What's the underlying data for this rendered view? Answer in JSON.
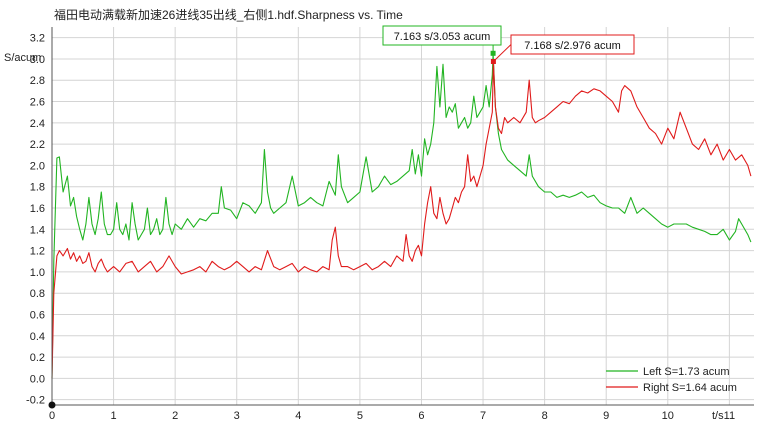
{
  "title": "福田电动满载新加速26进线35出线_右侧1.hdf.Sharpness vs. Time",
  "chart_data": {
    "type": "line",
    "title": "福田电动满载新加速26进线35出线_右侧1.hdf.Sharpness vs. Time",
    "xlabel": "t/s",
    "ylabel": "S/acum",
    "xlim": [
      0,
      11.4
    ],
    "ylim": [
      -0.25,
      3.3
    ],
    "x_ticks": [
      0,
      1,
      2,
      3,
      4,
      5,
      6,
      7,
      8,
      9,
      10,
      11
    ],
    "y_ticks": [
      -0.2,
      0.0,
      0.2,
      0.4,
      0.6,
      0.8,
      1.0,
      1.2,
      1.4,
      1.6,
      1.8,
      2.0,
      2.2,
      2.4,
      2.6,
      2.8,
      3.0,
      3.2
    ],
    "y_tick_labels": [
      "-0.2",
      "0.0",
      "0.2",
      "0.4",
      "0.6",
      "0.8",
      "1.0",
      "1.2",
      "1.4",
      "1.6",
      "1.8",
      "2.0",
      "2.2",
      "2.4",
      "2.6",
      "2.8",
      "3.0",
      "3.2"
    ],
    "grid": true,
    "legend_position": "bottom-right",
    "series": [
      {
        "name": "Left S=1.73 acum",
        "color": "#22b422",
        "x": [
          0,
          0.03,
          0.08,
          0.12,
          0.18,
          0.25,
          0.3,
          0.35,
          0.4,
          0.45,
          0.5,
          0.55,
          0.6,
          0.65,
          0.7,
          0.75,
          0.8,
          0.85,
          0.9,
          0.95,
          1.0,
          1.05,
          1.1,
          1.15,
          1.2,
          1.25,
          1.3,
          1.35,
          1.4,
          1.45,
          1.5,
          1.55,
          1.6,
          1.65,
          1.7,
          1.75,
          1.8,
          1.85,
          1.9,
          1.95,
          2.0,
          2.1,
          2.2,
          2.3,
          2.4,
          2.5,
          2.6,
          2.7,
          2.75,
          2.8,
          2.9,
          3.0,
          3.1,
          3.2,
          3.3,
          3.4,
          3.45,
          3.5,
          3.55,
          3.6,
          3.7,
          3.8,
          3.9,
          4.0,
          4.1,
          4.2,
          4.3,
          4.4,
          4.5,
          4.6,
          4.65,
          4.7,
          4.8,
          4.9,
          5.0,
          5.1,
          5.2,
          5.3,
          5.4,
          5.5,
          5.6,
          5.7,
          5.8,
          5.85,
          5.9,
          5.95,
          6.0,
          6.05,
          6.1,
          6.15,
          6.2,
          6.25,
          6.3,
          6.35,
          6.4,
          6.45,
          6.5,
          6.55,
          6.6,
          6.65,
          6.7,
          6.75,
          6.8,
          6.85,
          6.9,
          6.95,
          7.0,
          7.05,
          7.1,
          7.15,
          7.163,
          7.2,
          7.25,
          7.3,
          7.4,
          7.5,
          7.6,
          7.7,
          7.75,
          7.8,
          7.9,
          8.0,
          8.1,
          8.2,
          8.3,
          8.4,
          8.5,
          8.6,
          8.7,
          8.8,
          8.9,
          9.0,
          9.1,
          9.2,
          9.3,
          9.4,
          9.5,
          9.6,
          9.7,
          9.8,
          9.9,
          10.0,
          10.1,
          10.2,
          10.3,
          10.4,
          10.5,
          10.6,
          10.7,
          10.8,
          10.9,
          11.0,
          11.1,
          11.15,
          11.2,
          11.3,
          11.35
        ],
        "values": [
          0.0,
          1.1,
          2.07,
          2.08,
          1.75,
          1.9,
          1.62,
          1.7,
          1.52,
          1.4,
          1.3,
          1.45,
          1.7,
          1.45,
          1.35,
          1.5,
          1.75,
          1.45,
          1.35,
          1.35,
          1.4,
          1.65,
          1.4,
          1.35,
          1.45,
          1.3,
          1.65,
          1.45,
          1.3,
          1.35,
          1.4,
          1.6,
          1.35,
          1.4,
          1.5,
          1.35,
          1.4,
          1.7,
          1.45,
          1.35,
          1.45,
          1.4,
          1.5,
          1.42,
          1.5,
          1.48,
          1.55,
          1.55,
          1.8,
          1.6,
          1.58,
          1.5,
          1.65,
          1.62,
          1.55,
          1.65,
          2.15,
          1.75,
          1.6,
          1.55,
          1.6,
          1.65,
          1.9,
          1.62,
          1.65,
          1.7,
          1.65,
          1.62,
          1.85,
          1.72,
          2.1,
          1.8,
          1.65,
          1.7,
          1.75,
          2.08,
          1.75,
          1.8,
          1.9,
          1.82,
          1.85,
          1.9,
          1.95,
          2.15,
          1.92,
          2.1,
          1.9,
          2.25,
          2.1,
          2.2,
          2.4,
          2.93,
          2.55,
          2.95,
          2.45,
          2.55,
          2.5,
          2.58,
          2.35,
          2.4,
          2.45,
          2.35,
          2.4,
          2.65,
          2.45,
          2.5,
          2.55,
          2.75,
          2.55,
          2.85,
          3.053,
          2.55,
          2.3,
          2.15,
          2.05,
          2.0,
          1.95,
          1.9,
          2.1,
          1.9,
          1.8,
          1.75,
          1.75,
          1.7,
          1.72,
          1.7,
          1.72,
          1.75,
          1.7,
          1.72,
          1.65,
          1.62,
          1.6,
          1.6,
          1.55,
          1.7,
          1.55,
          1.6,
          1.55,
          1.5,
          1.45,
          1.42,
          1.45,
          1.45,
          1.45,
          1.42,
          1.4,
          1.38,
          1.35,
          1.35,
          1.4,
          1.3,
          1.38,
          1.5,
          1.45,
          1.35,
          1.28
        ]
      },
      {
        "name": "Right S=1.64 acum",
        "color": "#e01b1b",
        "x": [
          0,
          0.03,
          0.08,
          0.12,
          0.18,
          0.25,
          0.3,
          0.35,
          0.4,
          0.45,
          0.5,
          0.55,
          0.6,
          0.65,
          0.7,
          0.75,
          0.8,
          0.85,
          0.9,
          1.0,
          1.1,
          1.2,
          1.3,
          1.4,
          1.5,
          1.6,
          1.7,
          1.8,
          1.9,
          2.0,
          2.1,
          2.2,
          2.3,
          2.4,
          2.5,
          2.6,
          2.7,
          2.8,
          2.9,
          3.0,
          3.1,
          3.2,
          3.3,
          3.4,
          3.5,
          3.6,
          3.7,
          3.8,
          3.9,
          4.0,
          4.1,
          4.2,
          4.3,
          4.4,
          4.5,
          4.55,
          4.6,
          4.65,
          4.7,
          4.8,
          4.9,
          5.0,
          5.1,
          5.2,
          5.3,
          5.4,
          5.5,
          5.6,
          5.7,
          5.75,
          5.8,
          5.85,
          5.9,
          5.95,
          6.0,
          6.05,
          6.1,
          6.15,
          6.2,
          6.25,
          6.3,
          6.35,
          6.4,
          6.45,
          6.5,
          6.55,
          6.6,
          6.65,
          6.7,
          6.75,
          6.8,
          6.85,
          6.9,
          6.95,
          7.0,
          7.05,
          7.1,
          7.15,
          7.168,
          7.2,
          7.25,
          7.3,
          7.35,
          7.4,
          7.5,
          7.6,
          7.7,
          7.75,
          7.8,
          7.85,
          7.9,
          8.0,
          8.1,
          8.2,
          8.3,
          8.4,
          8.5,
          8.6,
          8.7,
          8.8,
          8.9,
          9.0,
          9.1,
          9.2,
          9.25,
          9.3,
          9.4,
          9.5,
          9.6,
          9.7,
          9.8,
          9.9,
          10.0,
          10.1,
          10.2,
          10.3,
          10.4,
          10.5,
          10.6,
          10.7,
          10.8,
          10.9,
          11.0,
          11.1,
          11.2,
          11.3,
          11.35
        ],
        "values": [
          0.0,
          0.8,
          1.15,
          1.2,
          1.15,
          1.22,
          1.12,
          1.18,
          1.1,
          1.15,
          1.08,
          1.1,
          1.18,
          1.05,
          1.0,
          1.08,
          1.12,
          1.05,
          1.0,
          1.05,
          1.0,
          1.08,
          1.1,
          1.0,
          1.05,
          1.1,
          1.0,
          1.05,
          1.15,
          1.05,
          0.98,
          1.0,
          1.02,
          1.05,
          1.0,
          1.1,
          1.05,
          1.02,
          1.05,
          1.1,
          1.05,
          1.0,
          1.05,
          1.02,
          1.2,
          1.05,
          1.02,
          1.05,
          1.08,
          1.0,
          1.05,
          1.02,
          1.0,
          1.05,
          1.02,
          1.3,
          1.42,
          1.15,
          1.05,
          1.05,
          1.02,
          1.05,
          1.08,
          1.02,
          1.05,
          1.1,
          1.05,
          1.15,
          1.1,
          1.35,
          1.15,
          1.1,
          1.2,
          1.25,
          1.15,
          1.45,
          1.65,
          1.8,
          1.55,
          1.5,
          1.7,
          1.55,
          1.45,
          1.5,
          1.6,
          1.7,
          1.65,
          1.75,
          1.8,
          2.1,
          1.85,
          1.9,
          1.8,
          1.9,
          2.0,
          2.2,
          2.35,
          2.5,
          2.976,
          2.55,
          2.35,
          2.3,
          2.45,
          2.4,
          2.45,
          2.4,
          2.5,
          2.8,
          2.45,
          2.4,
          2.42,
          2.45,
          2.5,
          2.55,
          2.6,
          2.58,
          2.65,
          2.7,
          2.68,
          2.72,
          2.7,
          2.65,
          2.6,
          2.5,
          2.7,
          2.75,
          2.7,
          2.55,
          2.45,
          2.35,
          2.3,
          2.2,
          2.35,
          2.25,
          2.5,
          2.35,
          2.2,
          2.15,
          2.25,
          2.1,
          2.2,
          2.05,
          2.15,
          2.05,
          2.1,
          2.0,
          1.9
        ]
      }
    ],
    "annotations": [
      {
        "text": "7.163 s/3.053 acum",
        "x": 7.163,
        "y": 3.053,
        "series": "Left S=1.73 acum",
        "color": "#22b422"
      },
      {
        "text": "7.168 s/2.976 acum",
        "x": 7.168,
        "y": 2.976,
        "series": "Right S=1.64 acum",
        "color": "#e01b1b"
      }
    ]
  }
}
